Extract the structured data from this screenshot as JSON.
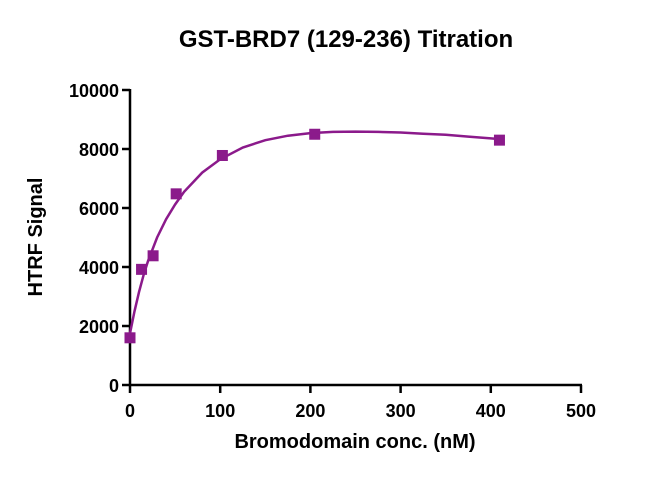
{
  "chart_data": {
    "type": "scatter",
    "title": "GST-BRD7 (129-236) Titration",
    "xlabel": "Bromodomain conc. (nM)",
    "ylabel": "HTRF Signal",
    "xlim": [
      0,
      500
    ],
    "ylim": [
      0,
      10000
    ],
    "x_ticks": [
      0,
      100,
      200,
      300,
      400,
      500
    ],
    "y_ticks": [
      0,
      2000,
      4000,
      6000,
      8000,
      10000
    ],
    "grid": false,
    "colors": {
      "marker": "#8B1A8B",
      "curve": "#8B1A8B",
      "axis": "#000000"
    },
    "series": [
      {
        "marker": "square",
        "x": [
          0,
          12.8,
          25.6,
          51.2,
          102.4,
          204.8,
          409.6
        ],
        "y": [
          1600,
          3920,
          4380,
          6480,
          7780,
          8500,
          8300
        ]
      }
    ],
    "fit_curve": {
      "x": [
        0,
        5,
        10,
        15,
        20,
        30,
        40,
        50,
        60,
        80,
        100,
        125,
        150,
        175,
        200,
        225,
        250,
        275,
        300,
        325,
        350,
        375,
        400,
        412
      ],
      "y": [
        1750,
        2500,
        3150,
        3720,
        4200,
        5000,
        5620,
        6120,
        6550,
        7200,
        7650,
        8050,
        8300,
        8450,
        8540,
        8580,
        8590,
        8580,
        8560,
        8520,
        8480,
        8420,
        8360,
        8330
      ]
    }
  }
}
